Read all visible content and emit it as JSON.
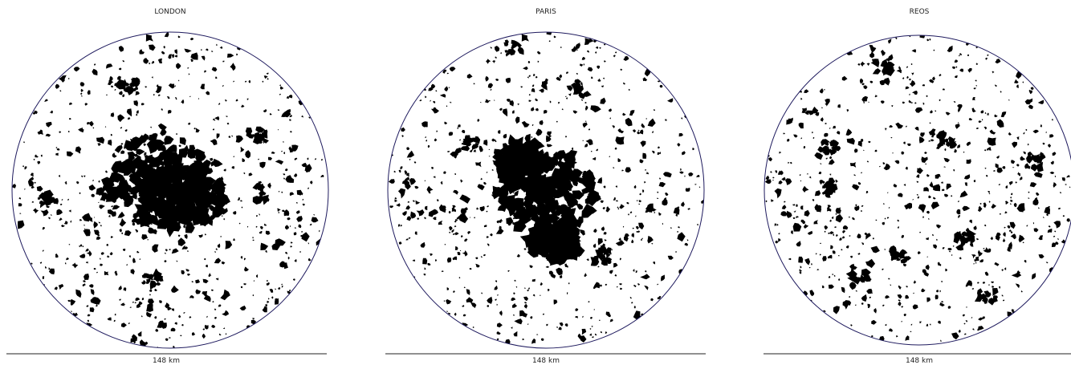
{
  "panels": [
    {
      "title": "LONDON",
      "scale": "148 km"
    },
    {
      "title": "PARIS",
      "scale": "148 km"
    },
    {
      "title": "REOS",
      "scale": "148 km"
    }
  ]
}
